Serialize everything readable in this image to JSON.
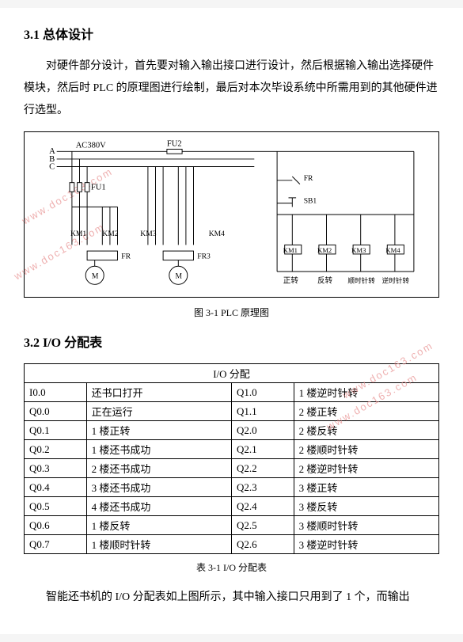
{
  "section1": {
    "number": "3.1",
    "title": "总体设计"
  },
  "paragraph1": "对硬件部分设计，首先要对输入输出接口进行设计，然后根据输入输出选择硬件模块，然后时 PLC 的原理图进行绘制，最后对本次毕设系统中所需用到的其他硬件进行选型。",
  "diagram": {
    "ac_label": "AC380V",
    "phases": [
      "A",
      "B",
      "C"
    ],
    "fu1": "FU1",
    "fu2": "FU2",
    "fr_label": "FR",
    "fr3_label": "FR3",
    "sb1": "SB1",
    "relays_top": [
      "KM1",
      "KM2",
      "KM3",
      "KM4"
    ],
    "action_labels": [
      "正转",
      "反转",
      "顺时针转",
      "逆时针转"
    ],
    "motor_label": "M",
    "line_color": "#000000",
    "line_width": 1,
    "font_size": 11
  },
  "figure_caption": "图 3-1 PLC 原理图",
  "section2": {
    "number": "3.2",
    "title": "I/O 分配表"
  },
  "table": {
    "header": "I/O 分配",
    "rows": [
      [
        "I0.0",
        "还书口打开",
        "Q1.0",
        "1 楼逆时针转"
      ],
      [
        "Q0.0",
        "正在运行",
        "Q1.1",
        "2 楼正转"
      ],
      [
        "Q0.1",
        "1 楼正转",
        "Q2.0",
        "2 楼反转"
      ],
      [
        "Q0.2",
        "1 楼还书成功",
        "Q2.1",
        "2 楼顺时针转"
      ],
      [
        "Q0.3",
        "2 楼还书成功",
        "Q2.2",
        "2 楼逆时针转"
      ],
      [
        "Q0.4",
        "3 楼还书成功",
        "Q2.3",
        "3 楼正转"
      ],
      [
        "Q0.5",
        "4 楼还书成功",
        "Q2.4",
        "3 楼反转"
      ],
      [
        "Q0.6",
        "1 楼反转",
        "Q2.5",
        "3 楼顺时针转"
      ],
      [
        "Q0.7",
        "1 楼顺时针转",
        "Q2.6",
        "3 楼逆时针转"
      ]
    ]
  },
  "table_caption": "表 3-1 I/O 分配表",
  "paragraph2": "智能还书机的 I/O 分配表如上图所示，其中输入接口只用到了 1 个，而输出",
  "watermark": "www.doc163.com"
}
